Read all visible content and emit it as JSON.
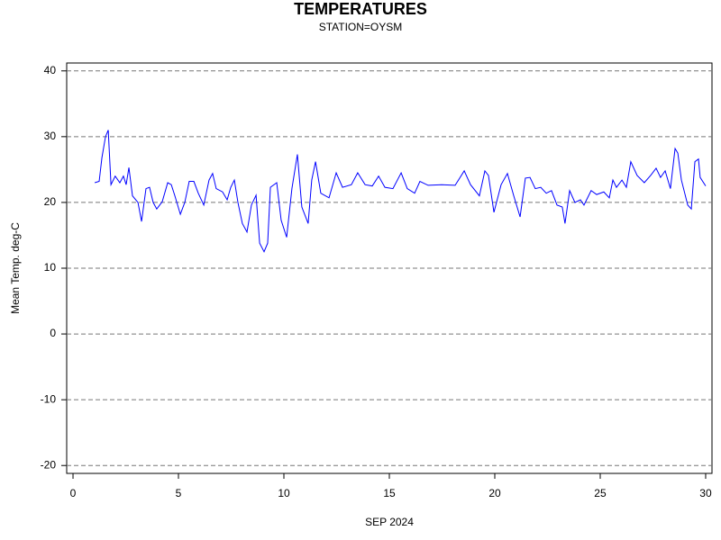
{
  "chart_data": {
    "type": "line",
    "title": "TEMPERATURES",
    "subtitle": "STATION=OYSM",
    "x_label": "SEP 2024",
    "y_label": "Mean Temp. deg-C",
    "color": "#0000ff",
    "grid": true,
    "xlim": [
      -0.3,
      30.3
    ],
    "ylim": [
      -21.2,
      41.2
    ],
    "xticks": [
      0,
      5,
      10,
      15,
      20,
      25,
      30
    ],
    "yticks": [
      -20,
      -10,
      0,
      10,
      20,
      30,
      40
    ],
    "x": [
      1.03,
      1.24,
      1.37,
      1.54,
      1.67,
      1.8,
      2.0,
      2.22,
      2.39,
      2.52,
      2.65,
      2.82,
      3.08,
      3.25,
      3.46,
      3.63,
      3.8,
      3.97,
      4.23,
      4.49,
      4.66,
      4.83,
      5.09,
      5.3,
      5.51,
      5.73,
      5.94,
      6.2,
      6.45,
      6.62,
      6.79,
      7.09,
      7.31,
      7.48,
      7.65,
      7.82,
      8.03,
      8.25,
      8.46,
      8.68,
      8.85,
      9.06,
      9.23,
      9.36,
      9.66,
      9.87,
      10.13,
      10.38,
      10.64,
      10.85,
      11.15,
      11.32,
      11.5,
      11.75,
      12.14,
      12.48,
      12.78,
      13.2,
      13.5,
      13.85,
      14.19,
      14.49,
      14.79,
      15.17,
      15.56,
      15.85,
      16.2,
      16.45,
      16.84,
      17.48,
      18.12,
      18.55,
      18.85,
      19.27,
      19.53,
      19.7,
      19.96,
      20.3,
      20.6,
      20.9,
      21.2,
      21.45,
      21.67,
      21.92,
      22.18,
      22.44,
      22.69,
      22.95,
      23.2,
      23.33,
      23.55,
      23.8,
      24.06,
      24.23,
      24.57,
      24.83,
      25.17,
      25.43,
      25.6,
      25.77,
      26.03,
      26.24,
      26.45,
      26.75,
      27.09,
      27.39,
      27.65,
      27.86,
      28.08,
      28.33,
      28.55,
      28.68,
      28.85,
      29.15,
      29.32,
      29.49,
      29.66,
      29.74,
      30.0
    ],
    "values": [
      23.0,
      23.2,
      26.8,
      30.0,
      31.0,
      22.7,
      24.0,
      23.0,
      24.0,
      22.7,
      25.3,
      21.0,
      20.0,
      17.1,
      22.1,
      22.3,
      20.0,
      19.0,
      20.1,
      23.0,
      22.7,
      21.0,
      18.2,
      20.0,
      23.2,
      23.2,
      21.4,
      19.6,
      23.4,
      24.4,
      22.1,
      21.6,
      20.4,
      22.3,
      23.4,
      20.0,
      16.8,
      15.5,
      19.6,
      21.1,
      13.8,
      12.5,
      13.8,
      22.3,
      23.0,
      17.3,
      14.7,
      22.1,
      27.3,
      19.3,
      16.8,
      23.4,
      26.2,
      21.4,
      20.7,
      24.5,
      22.3,
      22.7,
      24.5,
      22.7,
      22.5,
      24.0,
      22.3,
      22.1,
      24.5,
      22.1,
      21.4,
      23.2,
      22.6,
      22.7,
      22.6,
      24.8,
      22.7,
      21.0,
      24.8,
      24.1,
      18.5,
      22.7,
      24.4,
      21.0,
      17.8,
      23.7,
      23.8,
      22.1,
      22.3,
      21.4,
      21.8,
      19.6,
      19.3,
      16.8,
      21.8,
      20.0,
      20.4,
      19.6,
      21.8,
      21.2,
      21.6,
      20.7,
      23.4,
      22.3,
      23.4,
      22.3,
      26.2,
      24.1,
      23.0,
      24.1,
      25.2,
      23.8,
      24.8,
      22.1,
      28.2,
      27.5,
      23.4,
      19.6,
      19.0,
      26.2,
      26.6,
      23.8,
      22.5
    ]
  }
}
